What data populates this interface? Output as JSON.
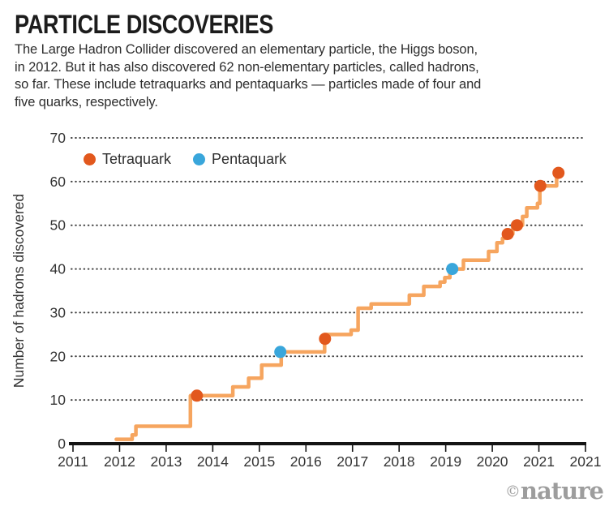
{
  "header": {
    "title": "PARTICLE DISCOVERIES",
    "subtitle": "The Large Hadron Collider discovered an elementary particle, the Higgs boson,\nin 2012. But it has also discovered 62 non-elementary particles, called hadrons,\nso far. These include tetraquarks and pentaquarks — particles made of four and\nfive quarks, respectively."
  },
  "legend": {
    "items": [
      {
        "key": "tetraquark",
        "label": "Tetraquark",
        "color": "#e2581d"
      },
      {
        "key": "pentaquark",
        "label": "Pentaquark",
        "color": "#39a6db"
      }
    ]
  },
  "credit": {
    "symbol": "©",
    "text": "nature"
  },
  "chart_data": {
    "type": "line",
    "subtype": "step-cumulative",
    "title": "PARTICLE DISCOVERIES",
    "xlabel": "",
    "ylabel": "Number of hadrons discovered",
    "xlim": [
      2011,
      2022
    ],
    "ylim": [
      0,
      70
    ],
    "yticks": [
      0,
      10,
      20,
      30,
      40,
      50,
      60,
      70
    ],
    "xtick_labels": [
      "2011",
      "2012",
      "2013",
      "2014",
      "2015",
      "2016",
      "2017",
      "2018",
      "2019",
      "2020",
      "2021",
      "2021"
    ],
    "grid": "horizontal-dotted",
    "legend_position": "inside-top-left",
    "line_color": "#f6a55f",
    "axis_color": "#141414",
    "grid_color": "#3f3f3f",
    "text_color": "#333333",
    "steps": [
      [
        2011.93,
        1
      ],
      [
        2012.27,
        2
      ],
      [
        2012.35,
        4
      ],
      [
        2013.52,
        11
      ],
      [
        2014.43,
        13
      ],
      [
        2014.77,
        15
      ],
      [
        2015.05,
        18
      ],
      [
        2015.47,
        21
      ],
      [
        2016.4,
        25
      ],
      [
        2016.97,
        26
      ],
      [
        2017.12,
        31
      ],
      [
        2017.4,
        32
      ],
      [
        2018.22,
        34
      ],
      [
        2018.53,
        36
      ],
      [
        2018.88,
        37
      ],
      [
        2018.98,
        38
      ],
      [
        2019.09,
        40
      ],
      [
        2019.38,
        42
      ],
      [
        2019.92,
        44
      ],
      [
        2020.1,
        46
      ],
      [
        2020.22,
        47
      ],
      [
        2020.32,
        48
      ],
      [
        2020.44,
        50
      ],
      [
        2020.65,
        52
      ],
      [
        2020.74,
        54
      ],
      [
        2020.97,
        55
      ],
      [
        2021.02,
        59
      ],
      [
        2021.38,
        62
      ]
    ],
    "markers": [
      {
        "year": 2013.66,
        "value": 11,
        "type": "tetraquark"
      },
      {
        "year": 2015.45,
        "value": 21,
        "type": "pentaquark"
      },
      {
        "year": 2016.41,
        "value": 24,
        "type": "tetraquark"
      },
      {
        "year": 2019.14,
        "value": 40,
        "type": "pentaquark"
      },
      {
        "year": 2020.33,
        "value": 48,
        "type": "tetraquark"
      },
      {
        "year": 2020.53,
        "value": 50,
        "type": "tetraquark"
      },
      {
        "year": 2021.03,
        "value": 59,
        "type": "tetraquark"
      },
      {
        "year": 2021.42,
        "value": 62,
        "type": "tetraquark"
      }
    ]
  }
}
